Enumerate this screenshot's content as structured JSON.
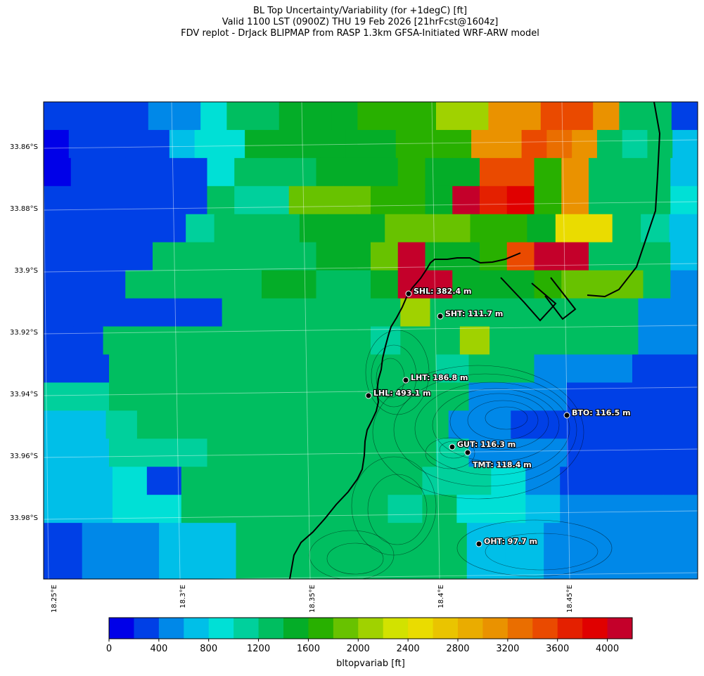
{
  "title": {
    "line1": "BL Top Uncertainty/Variability (for +1degC) [ft]",
    "line2": "Valid 1100 LST (0900Z) THU 19 Feb 2026 [21hrFcst@1604z]",
    "line3": "FDV replot - DrJack BLIPMAP from RASP 1.3km GFSA-Initiated WRF-ARW model"
  },
  "axes": {
    "lat_ticks": [
      "33.86°S",
      "33.88°S",
      "33.9°S",
      "33.92°S",
      "33.94°S",
      "33.96°S",
      "33.98°S"
    ],
    "lon_ticks": [
      "18.25°E",
      "18.3°E",
      "18.35°E",
      "18.4°E",
      "18.45°E"
    ]
  },
  "colorbar": {
    "label": "bltopvariab [ft]",
    "tick_labels": [
      "0",
      "400",
      "800",
      "1200",
      "1600",
      "2000",
      "2400",
      "2800",
      "3200",
      "3600",
      "4000"
    ],
    "colors": [
      "#0000e8",
      "#0040e6",
      "#0088e8",
      "#00bfe8",
      "#00e0d6",
      "#00d09c",
      "#00be60",
      "#04ad28",
      "#28b000",
      "#68c200",
      "#a0d200",
      "#d2e200",
      "#eadc00",
      "#eac400",
      "#eaac00",
      "#ea9200",
      "#ea6e00",
      "#ea4a00",
      "#e42000",
      "#e00000",
      "#c4002a"
    ]
  },
  "map_data": {
    "grid_rows": [
      "111122466777888AAFFHHF661",
      "01111344777777888FFHGF6563",
      "0111114666777877HH8F6663",
      "111111655999887LIJ8F6664",
      "111115666777999887CC653",
      "1111666666779L778HMT6663",
      "1116666677667NM777899962",
      "111111666666A666666622",
      "11666666666566A6666622",
      "11666666666656622211",
      "55666666666662221111",
      "335666666666622111111",
      "33555666666652221111",
      "3341666666655421111",
      "3344666666564432222",
      "12233666666332222",
      "12233666666332222"
    ],
    "stations": [
      {
        "code": "SHL",
        "label": "SHL: 382.4 m"
      },
      {
        "code": "SHT",
        "label": "SHT: 111.7 m"
      },
      {
        "code": "LHT",
        "label": "LHT: 186.8 m"
      },
      {
        "code": "LHL",
        "label": "LHL: 493.1 m"
      },
      {
        "code": "BTO",
        "label": "BTO: 116.5 m"
      },
      {
        "code": "GUT",
        "label": "GUT: 116.3 m"
      },
      {
        "code": "TMT",
        "label": "TMT: 118.4 m"
      },
      {
        "code": "OHT",
        "label": "OHT: 97.7 m"
      }
    ]
  }
}
